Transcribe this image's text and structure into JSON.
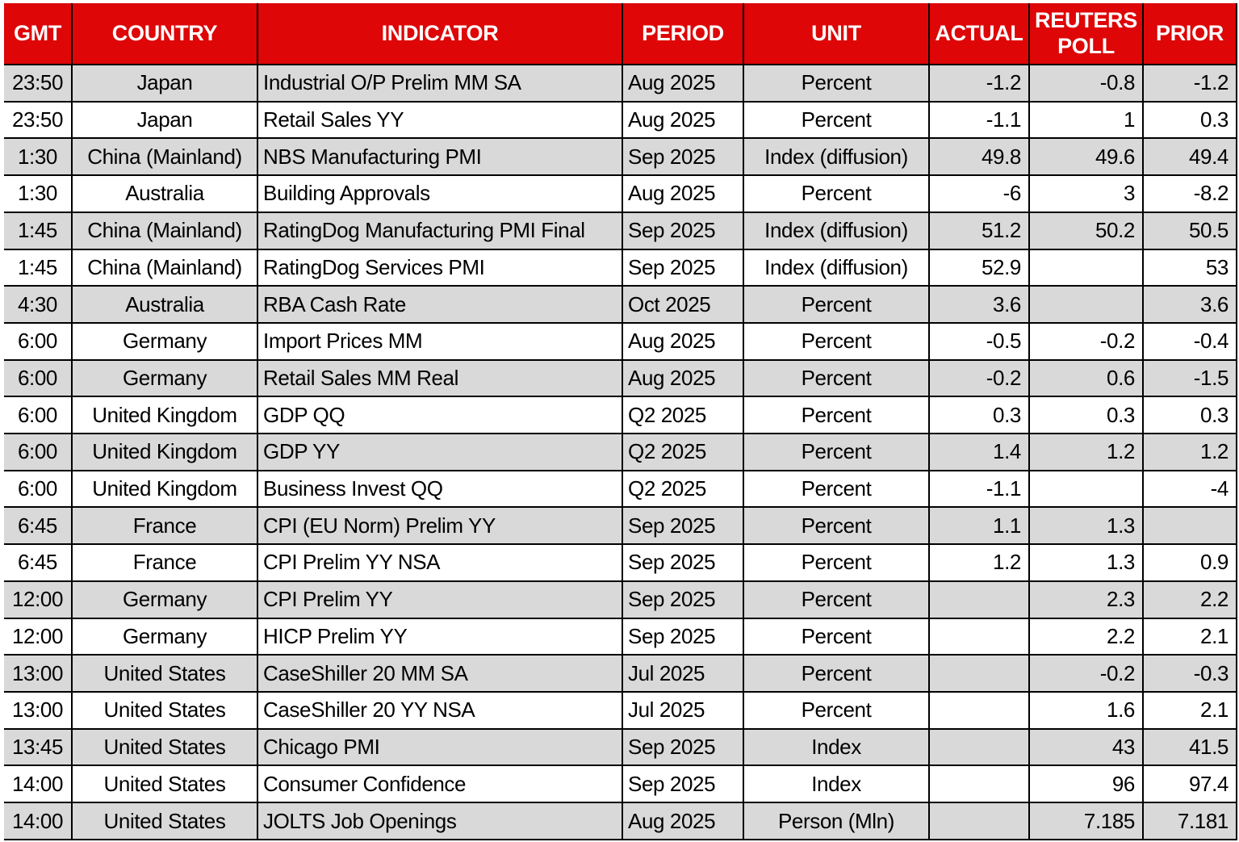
{
  "colors": {
    "header_bg": "#DE0607",
    "header_text": "#FFFFFF",
    "row_bg": "#FFFFFF",
    "row_stripe": "#D9D9D9",
    "grid": "#000000"
  },
  "table": {
    "columns": [
      {
        "key": "gmt",
        "label": "GMT",
        "align": "center"
      },
      {
        "key": "country",
        "label": "COUNTRY",
        "align": "center"
      },
      {
        "key": "indicator",
        "label": "INDICATOR",
        "align": "left"
      },
      {
        "key": "period",
        "label": "PERIOD",
        "align": "left"
      },
      {
        "key": "unit",
        "label": "UNIT",
        "align": "center"
      },
      {
        "key": "actual",
        "label": "ACTUAL",
        "align": "right"
      },
      {
        "key": "reuters_poll",
        "label": "REUTERS POLL",
        "align": "right"
      },
      {
        "key": "prior",
        "label": "PRIOR",
        "align": "right"
      }
    ],
    "rows": [
      {
        "gmt": "23:50",
        "country": "Japan",
        "indicator": "Industrial O/P Prelim MM SA",
        "period": "Aug 2025",
        "unit": "Percent",
        "actual": "-1.2",
        "reuters_poll": "-0.8",
        "prior": "-1.2"
      },
      {
        "gmt": "23:50",
        "country": "Japan",
        "indicator": "Retail Sales YY",
        "period": "Aug 2025",
        "unit": "Percent",
        "actual": "-1.1",
        "reuters_poll": "1",
        "prior": "0.3"
      },
      {
        "gmt": "1:30",
        "country": "China (Mainland)",
        "indicator": "NBS Manufacturing PMI",
        "period": "Sep 2025",
        "unit": "Index (diffusion)",
        "actual": "49.8",
        "reuters_poll": "49.6",
        "prior": "49.4"
      },
      {
        "gmt": "1:30",
        "country": "Australia",
        "indicator": "Building Approvals",
        "period": "Aug 2025",
        "unit": "Percent",
        "actual": "-6",
        "reuters_poll": "3",
        "prior": "-8.2"
      },
      {
        "gmt": "1:45",
        "country": "China (Mainland)",
        "indicator": "RatingDog Manufacturing PMI Final",
        "period": "Sep 2025",
        "unit": "Index (diffusion)",
        "actual": "51.2",
        "reuters_poll": "50.2",
        "prior": "50.5"
      },
      {
        "gmt": "1:45",
        "country": "China (Mainland)",
        "indicator": "RatingDog Services PMI",
        "period": "Sep 2025",
        "unit": "Index (diffusion)",
        "actual": "52.9",
        "reuters_poll": "",
        "prior": "53"
      },
      {
        "gmt": "4:30",
        "country": "Australia",
        "indicator": "RBA Cash Rate",
        "period": "Oct 2025",
        "unit": "Percent",
        "actual": "3.6",
        "reuters_poll": "",
        "prior": "3.6"
      },
      {
        "gmt": "6:00",
        "country": "Germany",
        "indicator": "Import Prices MM",
        "period": "Aug 2025",
        "unit": "Percent",
        "actual": "-0.5",
        "reuters_poll": "-0.2",
        "prior": "-0.4"
      },
      {
        "gmt": "6:00",
        "country": "Germany",
        "indicator": "Retail Sales MM Real",
        "period": "Aug 2025",
        "unit": "Percent",
        "actual": "-0.2",
        "reuters_poll": "0.6",
        "prior": "-1.5"
      },
      {
        "gmt": "6:00",
        "country": "United Kingdom",
        "indicator": "GDP QQ",
        "period": "Q2 2025",
        "unit": "Percent",
        "actual": "0.3",
        "reuters_poll": "0.3",
        "prior": "0.3"
      },
      {
        "gmt": "6:00",
        "country": "United Kingdom",
        "indicator": "GDP YY",
        "period": "Q2 2025",
        "unit": "Percent",
        "actual": "1.4",
        "reuters_poll": "1.2",
        "prior": "1.2"
      },
      {
        "gmt": "6:00",
        "country": "United Kingdom",
        "indicator": "Business Invest QQ",
        "period": "Q2 2025",
        "unit": "Percent",
        "actual": "-1.1",
        "reuters_poll": "",
        "prior": "-4"
      },
      {
        "gmt": "6:45",
        "country": "France",
        "indicator": "CPI (EU Norm) Prelim YY",
        "period": "Sep 2025",
        "unit": "Percent",
        "actual": "1.1",
        "reuters_poll": "1.3",
        "prior": ""
      },
      {
        "gmt": "6:45",
        "country": "France",
        "indicator": "CPI Prelim YY NSA",
        "period": "Sep 2025",
        "unit": "Percent",
        "actual": "1.2",
        "reuters_poll": "1.3",
        "prior": "0.9"
      },
      {
        "gmt": "12:00",
        "country": "Germany",
        "indicator": "CPI Prelim YY",
        "period": "Sep 2025",
        "unit": "Percent",
        "actual": "",
        "reuters_poll": "2.3",
        "prior": "2.2"
      },
      {
        "gmt": "12:00",
        "country": "Germany",
        "indicator": "HICP Prelim YY",
        "period": "Sep 2025",
        "unit": "Percent",
        "actual": "",
        "reuters_poll": "2.2",
        "prior": "2.1"
      },
      {
        "gmt": "13:00",
        "country": "United States",
        "indicator": "CaseShiller 20 MM SA",
        "period": "Jul 2025",
        "unit": "Percent",
        "actual": "",
        "reuters_poll": "-0.2",
        "prior": "-0.3"
      },
      {
        "gmt": "13:00",
        "country": "United States",
        "indicator": "CaseShiller 20 YY NSA",
        "period": "Jul 2025",
        "unit": "Percent",
        "actual": "",
        "reuters_poll": "1.6",
        "prior": "2.1"
      },
      {
        "gmt": "13:45",
        "country": "United States",
        "indicator": "Chicago PMI",
        "period": "Sep 2025",
        "unit": "Index",
        "actual": "",
        "reuters_poll": "43",
        "prior": "41.5"
      },
      {
        "gmt": "14:00",
        "country": "United States",
        "indicator": "Consumer Confidence",
        "period": "Sep 2025",
        "unit": "Index",
        "actual": "",
        "reuters_poll": "96",
        "prior": "97.4"
      },
      {
        "gmt": "14:00",
        "country": "United States",
        "indicator": "JOLTS Job Openings",
        "period": "Aug 2025",
        "unit": "Person (Mln)",
        "actual": "",
        "reuters_poll": "7.185",
        "prior": "7.181"
      }
    ]
  },
  "chart_data": {
    "type": "table",
    "title": "Economic calendar: indicators with actual, Reuters poll and prior values",
    "columns": [
      "GMT",
      "COUNTRY",
      "INDICATOR",
      "PERIOD",
      "UNIT",
      "ACTUAL",
      "REUTERS POLL",
      "PRIOR"
    ],
    "rows": [
      [
        "23:50",
        "Japan",
        "Industrial O/P Prelim MM SA",
        "Aug 2025",
        "Percent",
        -1.2,
        -0.8,
        -1.2
      ],
      [
        "23:50",
        "Japan",
        "Retail Sales YY",
        "Aug 2025",
        "Percent",
        -1.1,
        1,
        0.3
      ],
      [
        "1:30",
        "China (Mainland)",
        "NBS Manufacturing PMI",
        "Sep 2025",
        "Index (diffusion)",
        49.8,
        49.6,
        49.4
      ],
      [
        "1:30",
        "Australia",
        "Building Approvals",
        "Aug 2025",
        "Percent",
        -6,
        3,
        -8.2
      ],
      [
        "1:45",
        "China (Mainland)",
        "RatingDog Manufacturing PMI Final",
        "Sep 2025",
        "Index (diffusion)",
        51.2,
        50.2,
        50.5
      ],
      [
        "1:45",
        "China (Mainland)",
        "RatingDog Services PMI",
        "Sep 2025",
        "Index (diffusion)",
        52.9,
        null,
        53
      ],
      [
        "4:30",
        "Australia",
        "RBA Cash Rate",
        "Oct 2025",
        "Percent",
        3.6,
        null,
        3.6
      ],
      [
        "6:00",
        "Germany",
        "Import Prices MM",
        "Aug 2025",
        "Percent",
        -0.5,
        -0.2,
        -0.4
      ],
      [
        "6:00",
        "Germany",
        "Retail Sales MM Real",
        "Aug 2025",
        "Percent",
        -0.2,
        0.6,
        -1.5
      ],
      [
        "6:00",
        "United Kingdom",
        "GDP QQ",
        "Q2 2025",
        "Percent",
        0.3,
        0.3,
        0.3
      ],
      [
        "6:00",
        "United Kingdom",
        "GDP YY",
        "Q2 2025",
        "Percent",
        1.4,
        1.2,
        1.2
      ],
      [
        "6:00",
        "United Kingdom",
        "Business Invest QQ",
        "Q2 2025",
        "Percent",
        -1.1,
        null,
        -4
      ],
      [
        "6:45",
        "France",
        "CPI (EU Norm) Prelim YY",
        "Sep 2025",
        "Percent",
        1.1,
        1.3,
        null
      ],
      [
        "6:45",
        "France",
        "CPI Prelim YY NSA",
        "Sep 2025",
        "Percent",
        1.2,
        1.3,
        0.9
      ],
      [
        "12:00",
        "Germany",
        "CPI Prelim YY",
        "Sep 2025",
        "Percent",
        null,
        2.3,
        2.2
      ],
      [
        "12:00",
        "Germany",
        "HICP Prelim YY",
        "Sep 2025",
        "Percent",
        null,
        2.2,
        2.1
      ],
      [
        "13:00",
        "United States",
        "CaseShiller 20 MM SA",
        "Jul 2025",
        "Percent",
        null,
        -0.2,
        -0.3
      ],
      [
        "13:00",
        "United States",
        "CaseShiller 20 YY NSA",
        "Jul 2025",
        "Percent",
        null,
        1.6,
        2.1
      ],
      [
        "13:45",
        "United States",
        "Chicago PMI",
        "Sep 2025",
        "Index",
        null,
        43,
        41.5
      ],
      [
        "14:00",
        "United States",
        "Consumer Confidence",
        "Sep 2025",
        "Index",
        null,
        96,
        97.4
      ],
      [
        "14:00",
        "United States",
        "JOLTS Job Openings",
        "Aug 2025",
        "Person (Mln)",
        null,
        7.185,
        7.181
      ]
    ]
  }
}
